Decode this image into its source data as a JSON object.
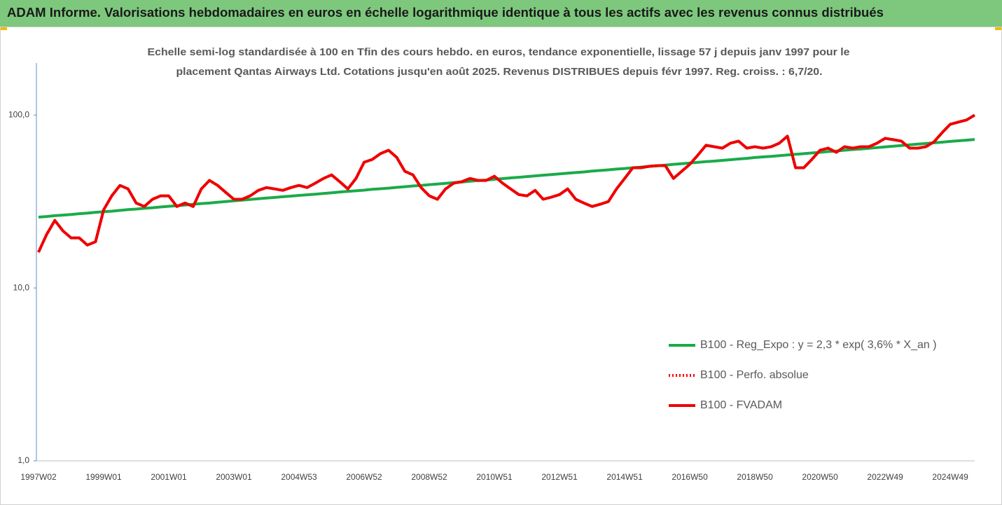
{
  "chart_data": {
    "type": "line",
    "title": "ADAM Informe. Valorisations hebdomadaires en euros en échelle logarithmique identique à tous les actifs avec les revenus connus distribués",
    "subtitle": [
      "Echelle semi-log standardisée à 100 en Tfin des cours hebdo. en euros, tendance exponentielle, lissage 57 j depuis janv 1997 pour le",
      "placement Qantas Airways Ltd. Cotations jusqu'en août 2025. Revenus DISTRIBUES depuis févr 1997. Reg. croiss. : 6,7/20."
    ],
    "log_scale": true,
    "grid": false,
    "legend": "right",
    "ylim": [
      1,
      200
    ],
    "yticks": [
      {
        "value": 1,
        "label": "1,0"
      },
      {
        "value": 10,
        "label": "10,0"
      },
      {
        "value": 100,
        "label": "100,0"
      }
    ],
    "categories": [
      "1997W02",
      null,
      null,
      null,
      null,
      null,
      null,
      null,
      "1999W01",
      null,
      null,
      null,
      null,
      null,
      null,
      null,
      "2001W01",
      null,
      null,
      null,
      null,
      null,
      null,
      null,
      "2003W01",
      null,
      null,
      null,
      null,
      null,
      null,
      null,
      "2004W53",
      null,
      null,
      null,
      null,
      null,
      null,
      null,
      "2006W52",
      null,
      null,
      null,
      null,
      null,
      null,
      null,
      "2008W52",
      null,
      null,
      null,
      null,
      null,
      null,
      null,
      "2010W51",
      null,
      null,
      null,
      null,
      null,
      null,
      null,
      "2012W51",
      null,
      null,
      null,
      null,
      null,
      null,
      null,
      "2014W51",
      null,
      null,
      null,
      null,
      null,
      null,
      null,
      "2016W50",
      null,
      null,
      null,
      null,
      null,
      null,
      null,
      "2018W50",
      null,
      null,
      null,
      null,
      null,
      null,
      null,
      "2020W50",
      null,
      null,
      null,
      null,
      null,
      null,
      null,
      "2022W49",
      null,
      null,
      null,
      null,
      null,
      null,
      null,
      "2024W49",
      null,
      null,
      null
    ],
    "series": [
      {
        "name": "B100 - Reg_Expo : y = 2,3 * exp( 3,6% *  X_an )",
        "color": "#1aab4a",
        "line_style": "solid",
        "values": [
          25.7,
          25.9,
          26.2,
          26.4,
          26.6,
          26.9,
          27.1,
          27.4,
          27.6,
          27.8,
          28.1,
          28.4,
          28.6,
          28.9,
          29.1,
          29.4,
          29.7,
          29.9,
          30.2,
          30.5,
          30.8,
          31.0,
          31.3,
          31.6,
          31.9,
          32.2,
          32.5,
          32.8,
          33.1,
          33.4,
          33.7,
          34.0,
          34.3,
          34.6,
          34.9,
          35.2,
          35.5,
          35.9,
          36.2,
          36.5,
          36.8,
          37.2,
          37.5,
          37.8,
          38.2,
          38.5,
          38.9,
          39.2,
          39.6,
          39.9,
          40.3,
          40.7,
          41.0,
          41.4,
          41.8,
          42.1,
          42.5,
          42.9,
          43.3,
          43.7,
          44.1,
          44.5,
          44.9,
          45.3,
          45.7,
          46.1,
          46.5,
          46.9,
          47.4,
          47.8,
          48.2,
          48.7,
          49.1,
          49.6,
          50.0,
          50.5,
          50.9,
          51.4,
          51.9,
          52.3,
          52.8,
          53.3,
          53.8,
          54.2,
          54.7,
          55.2,
          55.7,
          56.2,
          56.8,
          57.3,
          57.7,
          58.2,
          58.8,
          59.3,
          59.8,
          60.4,
          60.9,
          61.5,
          62.0,
          62.6,
          63.2,
          63.7,
          64.3,
          64.9,
          65.5,
          66.1,
          66.7,
          67.3,
          67.9,
          68.5,
          69.1,
          69.7,
          70.4,
          71.0,
          71.6,
          72.3
        ]
      },
      {
        "name": "B100 - Perfo. absolue",
        "color": "#ff0000",
        "line_style": "dotted",
        "values": [
          16.1,
          20.4,
          24.6,
          21.4,
          19.5,
          19.5,
          17.7,
          18.5,
          28.3,
          34.1,
          39.2,
          37.4,
          31.0,
          29.6,
          32.6,
          34.1,
          34.1,
          29.6,
          31.0,
          29.6,
          37.4,
          41.9,
          39.2,
          35.7,
          32.6,
          32.6,
          34.1,
          36.7,
          38.1,
          37.4,
          36.7,
          38.1,
          39.2,
          38.1,
          40.4,
          43.0,
          45.1,
          41.2,
          37.4,
          43.0,
          53.4,
          55.4,
          59.8,
          62.6,
          57.0,
          47.3,
          45.1,
          38.1,
          34.1,
          32.6,
          37.4,
          40.4,
          41.2,
          43.0,
          41.9,
          41.9,
          44.3,
          40.4,
          37.4,
          34.7,
          34.1,
          36.7,
          32.6,
          33.5,
          34.7,
          37.4,
          32.6,
          31.0,
          29.6,
          30.5,
          31.6,
          37.4,
          43.0,
          49.6,
          49.6,
          50.5,
          51.0,
          51.0,
          43.0,
          47.3,
          51.9,
          58.7,
          66.9,
          65.6,
          64.4,
          68.8,
          70.7,
          64.4,
          65.6,
          64.4,
          65.6,
          68.8,
          75.5,
          49.6,
          49.6,
          55.4,
          62.6,
          64.4,
          60.9,
          65.6,
          64.4,
          65.6,
          65.6,
          68.8,
          73.4,
          72.1,
          70.7,
          64.4,
          64.4,
          65.6,
          70.0,
          79.1,
          88.5,
          91.1,
          93.7,
          100
        ]
      },
      {
        "name": "B100 - FVADAM",
        "color": "#ee0000",
        "line_style": "solid",
        "values": [
          16.1,
          20.4,
          24.6,
          21.4,
          19.5,
          19.5,
          17.7,
          18.5,
          28.3,
          34.1,
          39.2,
          37.4,
          31.0,
          29.6,
          32.6,
          34.1,
          34.1,
          29.6,
          31.0,
          29.6,
          37.4,
          41.9,
          39.2,
          35.7,
          32.6,
          32.6,
          34.1,
          36.7,
          38.1,
          37.4,
          36.7,
          38.1,
          39.2,
          38.1,
          40.4,
          43.0,
          45.1,
          41.2,
          37.4,
          43.0,
          53.4,
          55.4,
          59.8,
          62.6,
          57.0,
          47.3,
          45.1,
          38.1,
          34.1,
          32.6,
          37.4,
          40.4,
          41.2,
          43.0,
          41.9,
          41.9,
          44.3,
          40.4,
          37.4,
          34.7,
          34.1,
          36.7,
          32.6,
          33.5,
          34.7,
          37.4,
          32.6,
          31.0,
          29.6,
          30.5,
          31.6,
          37.4,
          43.0,
          49.6,
          49.6,
          50.5,
          51.0,
          51.0,
          43.0,
          47.3,
          51.9,
          58.7,
          66.9,
          65.6,
          64.4,
          68.8,
          70.7,
          64.4,
          65.6,
          64.4,
          65.6,
          68.8,
          75.5,
          49.6,
          49.6,
          55.4,
          62.6,
          64.4,
          60.9,
          65.6,
          64.4,
          65.6,
          65.6,
          68.8,
          73.4,
          72.1,
          70.7,
          64.4,
          64.4,
          65.6,
          70.0,
          79.1,
          88.5,
          91.1,
          93.7,
          100
        ]
      }
    ]
  }
}
